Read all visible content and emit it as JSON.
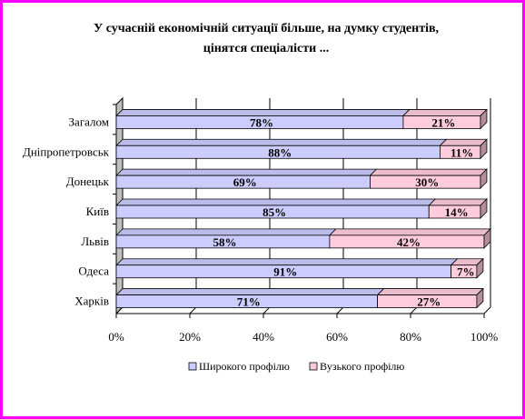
{
  "chart_data": {
    "type": "bar",
    "orientation": "horizontal",
    "stacked": "percent",
    "style": "3d",
    "title_line1": "У сучасній економічній ситуації більше, на думку студентів,",
    "title_line2": "цінятся спеціалісти ...",
    "categories": [
      "Загалом",
      "Дніпропетровськ",
      "Донецьк",
      "Київ",
      "Львів",
      "Одеса",
      "Харків"
    ],
    "series": [
      {
        "name": "Широкого профілю",
        "values": [
          78,
          88,
          69,
          85,
          58,
          91,
          71
        ],
        "labels": [
          "78%",
          "88%",
          "69%",
          "85%",
          "58%",
          "91%",
          "71%"
        ],
        "color": "#ccccff"
      },
      {
        "name": "Вузького профілю",
        "values": [
          21,
          11,
          30,
          14,
          42,
          7,
          27
        ],
        "labels": [
          "21%",
          "11%",
          "30%",
          "14%",
          "42%",
          "7%",
          "27%"
        ],
        "color": "#ffccdd"
      }
    ],
    "x_ticks": [
      "0%",
      "20%",
      "40%",
      "60%",
      "80%",
      "100%"
    ],
    "xlim": [
      0,
      100
    ],
    "legend_position": "bottom",
    "grid": "vertical"
  }
}
